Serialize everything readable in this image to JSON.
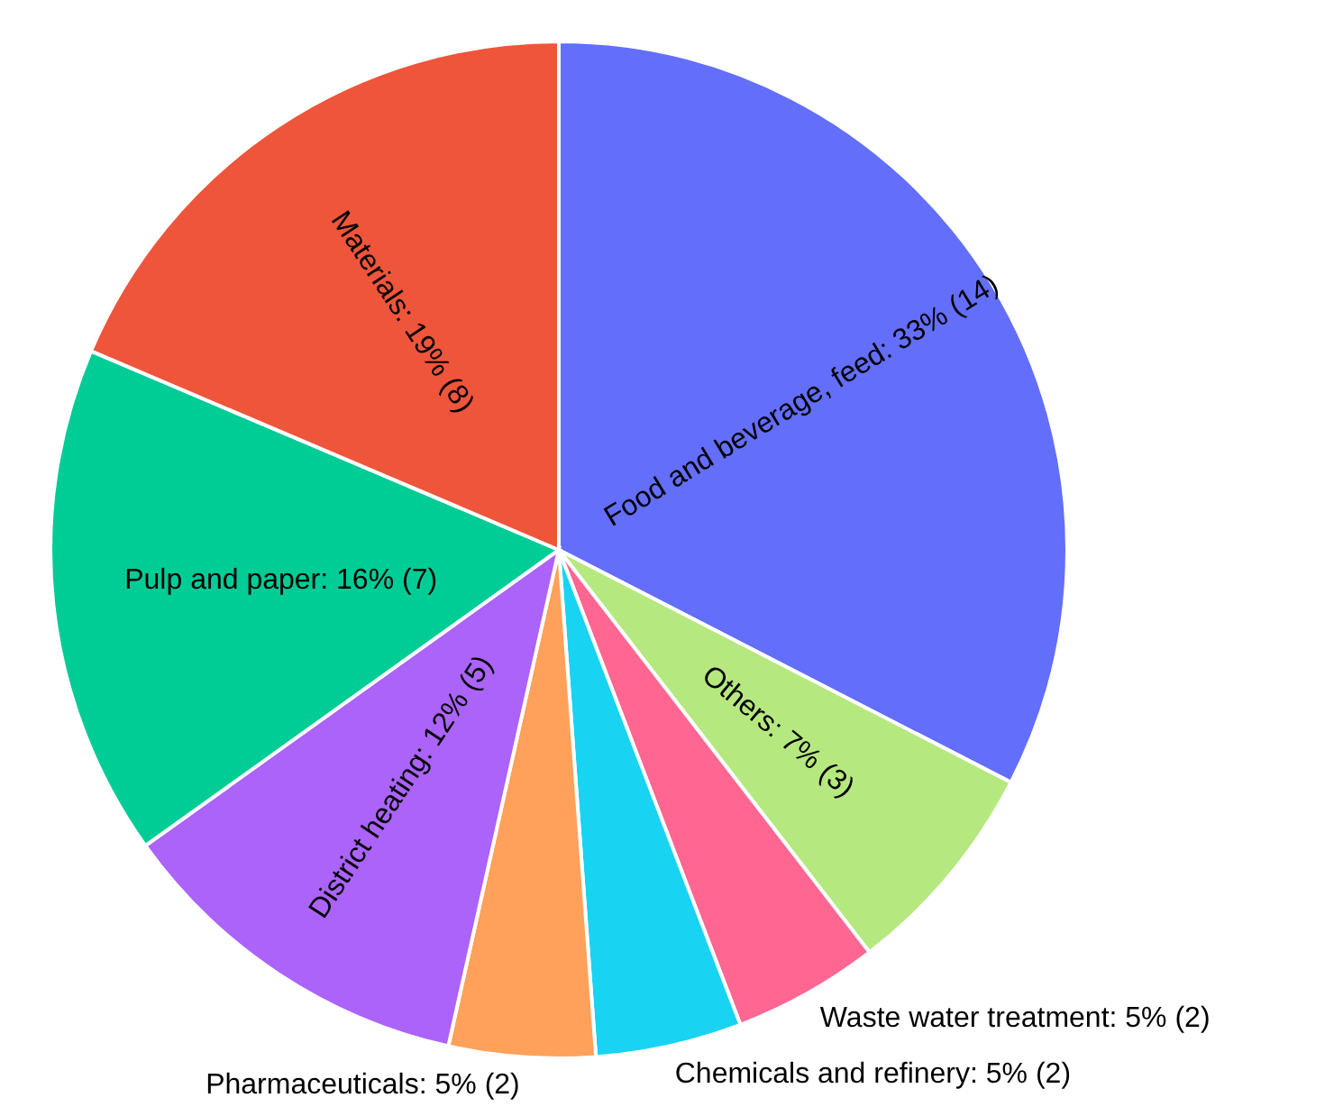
{
  "chart_data": {
    "type": "pie",
    "categories": [
      "Food and beverage, feed",
      "Others",
      "Waste water treatment",
      "Chemicals and refinery",
      "Pharmaceuticals",
      "District heating",
      "Pulp and paper",
      "Materials"
    ],
    "values": [
      14,
      3,
      2,
      2,
      2,
      5,
      7,
      8
    ],
    "value_labels": [
      "33% (14)",
      "7% (3)",
      "5% (2)",
      "5% (2)",
      "5% (2)",
      "12% (5)",
      "16% (7)",
      "19% (8)"
    ],
    "colors": [
      "#636efa",
      "#b6e880",
      "#ff6692",
      "#19d3f3",
      "#ffa15a",
      "#ab63fa",
      "#00cc96",
      "#ef553b"
    ],
    "legend": false
  }
}
